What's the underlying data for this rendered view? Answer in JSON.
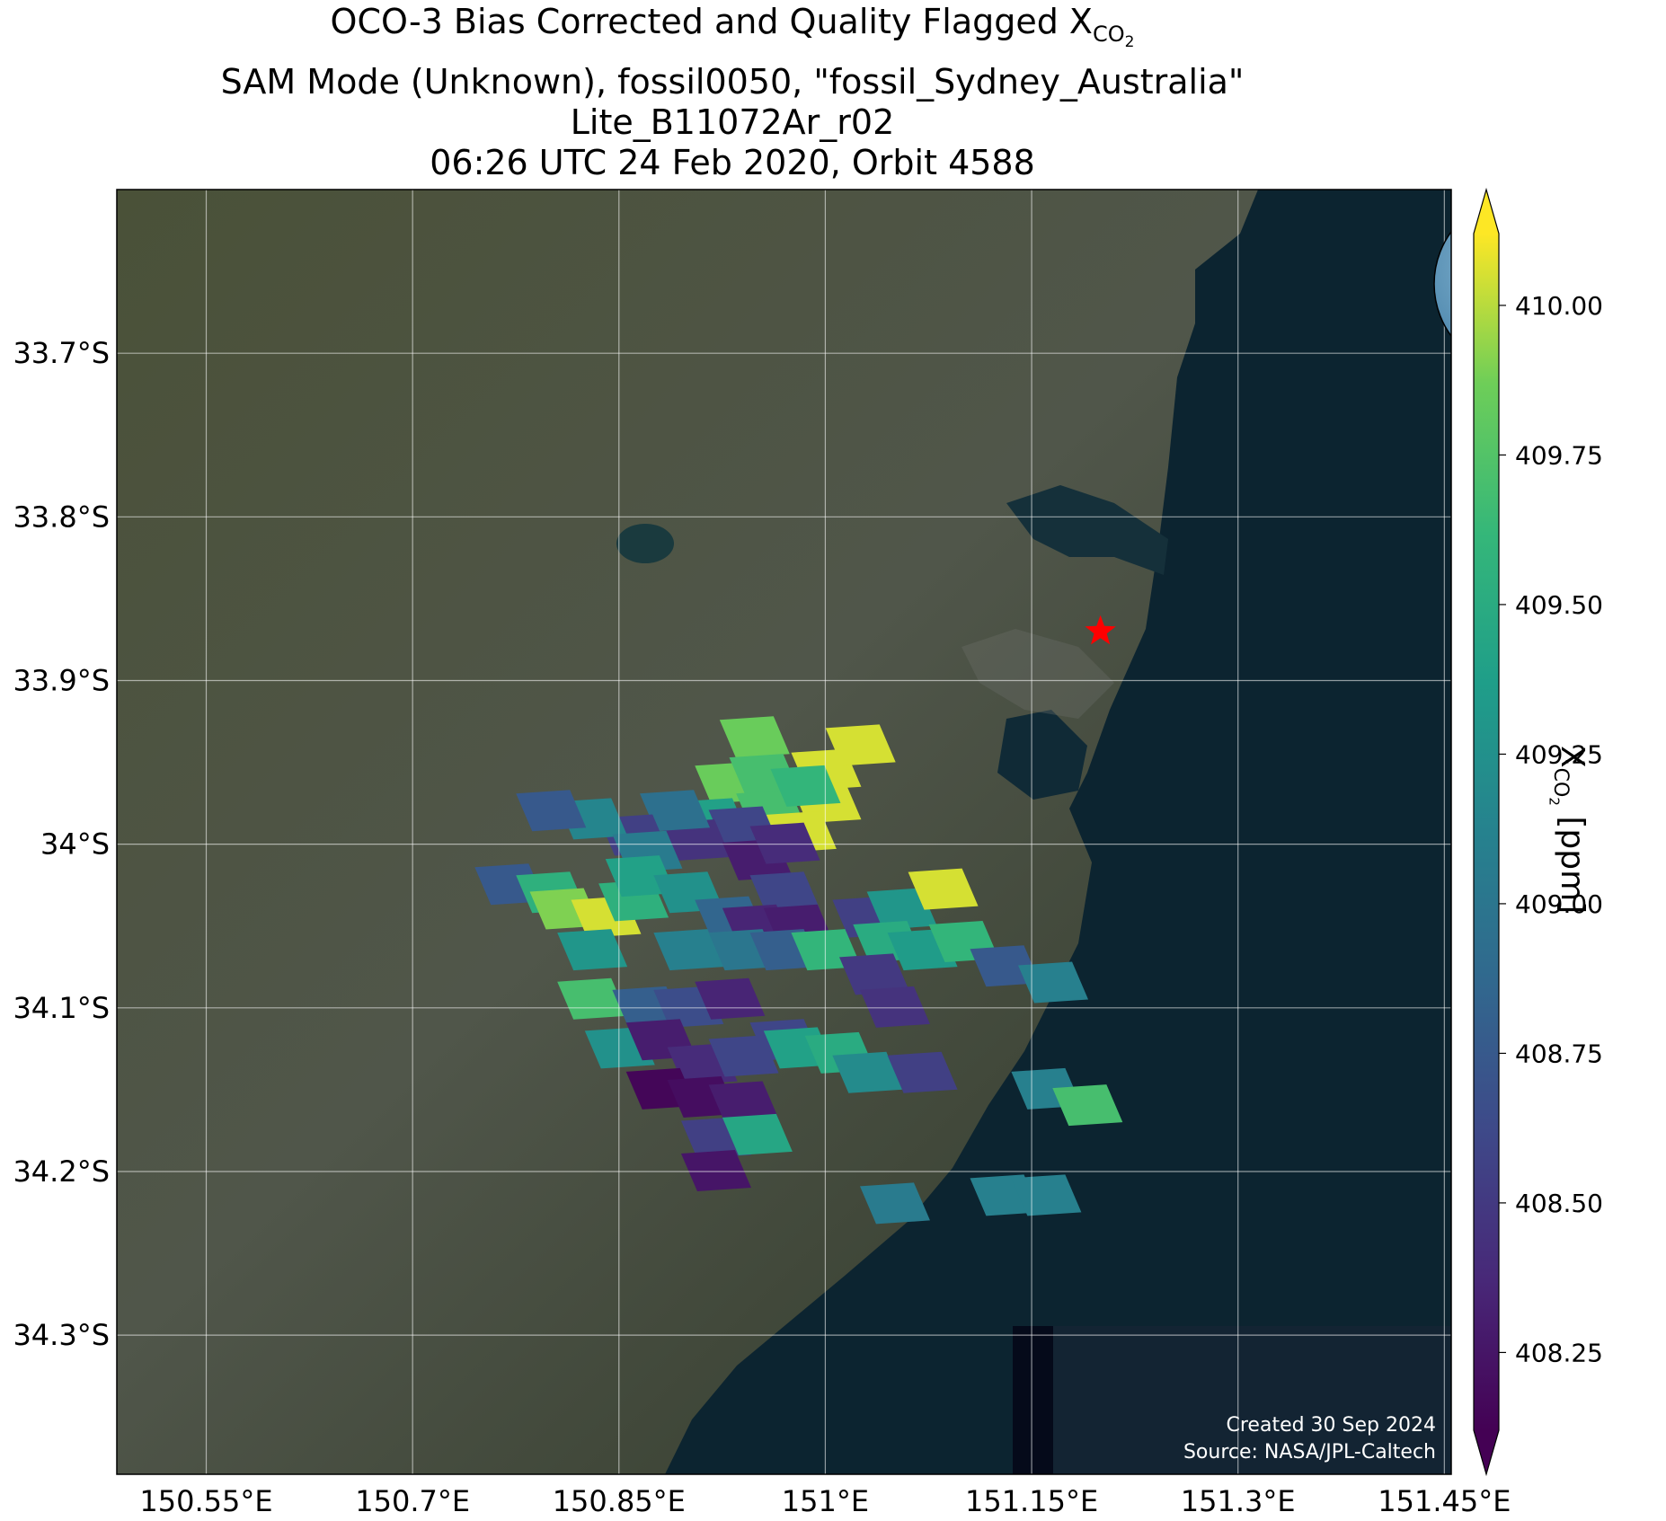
{
  "title": {
    "line1_prefix": "OCO-3 Bias Corrected and Quality Flagged X",
    "line1_sub": "CO",
    "line1_subsub": "2",
    "line2": "SAM Mode (Unknown), fossil0050, \"fossil_Sydney_Australia\"",
    "line3": "Lite_B11072Ar_r02",
    "line4": "06:26 UTC 24 Feb 2020, Orbit 4588"
  },
  "map": {
    "lon_range": [
      150.485,
      151.455
    ],
    "lat_range": [
      -34.385,
      -33.6
    ],
    "lat_ticks": [
      {
        "value": -33.7,
        "label": "33.7°S"
      },
      {
        "value": -33.8,
        "label": "33.8°S"
      },
      {
        "value": -33.9,
        "label": "33.9°S"
      },
      {
        "value": -34.0,
        "label": "34°S"
      },
      {
        "value": -34.1,
        "label": "34.1°S"
      },
      {
        "value": -34.2,
        "label": "34.2°S"
      },
      {
        "value": -34.3,
        "label": "34.3°S"
      }
    ],
    "lon_ticks": [
      {
        "value": 150.55,
        "label": "150.55°E"
      },
      {
        "value": 150.7,
        "label": "150.7°E"
      },
      {
        "value": 150.85,
        "label": "150.85°E"
      },
      {
        "value": 151.0,
        "label": "151°E"
      },
      {
        "value": 151.15,
        "label": "151.15°E"
      },
      {
        "value": 151.3,
        "label": "151.3°E"
      },
      {
        "value": 151.45,
        "label": "151.45°E"
      }
    ],
    "gridlines": true,
    "target_marker": {
      "name": "fossil_Sydney_Australia",
      "lon": 151.2,
      "lat": -33.87,
      "color": "#ff0000",
      "icon": "star-icon"
    },
    "inset_globe": {
      "icon": "globe-icon",
      "location": "top-right",
      "marker_color": "#ff0000"
    },
    "credits": {
      "line1": "Created 30 Sep 2024",
      "line2": "Source: NASA/JPL-Caltech"
    },
    "colors": {
      "land": "#3b4430",
      "ocean": "#0c2430",
      "grid": "#ffffff"
    }
  },
  "colorbar": {
    "label_prefix": "X",
    "label_sub": "CO",
    "label_subsub": "2",
    "label_suffix": " [ppm]",
    "min": 408.12,
    "max": 410.12,
    "extend": "both",
    "colormap": "viridis",
    "ticks": [
      "408.25",
      "408.50",
      "408.75",
      "409.00",
      "409.25",
      "409.50",
      "409.75",
      "410.00"
    ]
  },
  "chart_data": {
    "type": "heatmap",
    "description_units": "XCO2 ppm soundings at footprint centers (lon, lat)",
    "soundings": [
      {
        "lon": 150.948,
        "lat": -33.935,
        "xco2": 409.85
      },
      {
        "lon": 151.0,
        "lat": -33.955,
        "xco2": 410.05
      },
      {
        "lon": 151.025,
        "lat": -33.94,
        "xco2": 410.05
      },
      {
        "lon": 151.0,
        "lat": -33.975,
        "xco2": 410.05
      },
      {
        "lon": 150.93,
        "lat": -33.963,
        "xco2": 409.85
      },
      {
        "lon": 150.955,
        "lat": -33.958,
        "xco2": 409.7
      },
      {
        "lon": 150.96,
        "lat": -33.98,
        "xco2": 409.7
      },
      {
        "lon": 150.985,
        "lat": -33.965,
        "xco2": 409.6
      },
      {
        "lon": 150.918,
        "lat": -33.985,
        "xco2": 409.4
      },
      {
        "lon": 150.94,
        "lat": -33.99,
        "xco2": 408.6
      },
      {
        "lon": 150.905,
        "lat": -33.998,
        "xco2": 408.45
      },
      {
        "lon": 150.89,
        "lat": -33.98,
        "xco2": 408.95
      },
      {
        "lon": 150.86,
        "lat": -33.995,
        "xco2": 408.55
      },
      {
        "lon": 150.83,
        "lat": -33.985,
        "xco2": 409.15
      },
      {
        "lon": 150.8,
        "lat": -33.98,
        "xco2": 408.75
      },
      {
        "lon": 150.87,
        "lat": -34.005,
        "xco2": 409.05
      },
      {
        "lon": 150.982,
        "lat": -33.993,
        "xco2": 410.05
      },
      {
        "lon": 150.95,
        "lat": -34.01,
        "xco2": 408.3
      },
      {
        "lon": 150.97,
        "lat": -34.0,
        "xco2": 408.4
      },
      {
        "lon": 150.97,
        "lat": -34.03,
        "xco2": 408.6
      },
      {
        "lon": 150.77,
        "lat": -34.025,
        "xco2": 408.75
      },
      {
        "lon": 150.8,
        "lat": -34.03,
        "xco2": 409.55
      },
      {
        "lon": 150.81,
        "lat": -34.04,
        "xco2": 409.9
      },
      {
        "lon": 150.84,
        "lat": -34.045,
        "xco2": 410.05
      },
      {
        "lon": 150.86,
        "lat": -34.035,
        "xco2": 409.55
      },
      {
        "lon": 150.865,
        "lat": -34.02,
        "xco2": 409.4
      },
      {
        "lon": 150.9,
        "lat": -34.03,
        "xco2": 409.25
      },
      {
        "lon": 150.93,
        "lat": -34.045,
        "xco2": 408.85
      },
      {
        "lon": 150.95,
        "lat": -34.05,
        "xco2": 408.35
      },
      {
        "lon": 150.98,
        "lat": -34.05,
        "xco2": 408.3
      },
      {
        "lon": 151.03,
        "lat": -34.045,
        "xco2": 408.55
      },
      {
        "lon": 151.055,
        "lat": -34.04,
        "xco2": 409.3
      },
      {
        "lon": 151.085,
        "lat": -34.028,
        "xco2": 410.05
      },
      {
        "lon": 150.83,
        "lat": -34.065,
        "xco2": 409.3
      },
      {
        "lon": 150.9,
        "lat": -34.065,
        "xco2": 409.1
      },
      {
        "lon": 150.94,
        "lat": -34.065,
        "xco2": 409.0
      },
      {
        "lon": 150.97,
        "lat": -34.065,
        "xco2": 408.8
      },
      {
        "lon": 151.0,
        "lat": -34.065,
        "xco2": 409.6
      },
      {
        "lon": 151.045,
        "lat": -34.06,
        "xco2": 409.5
      },
      {
        "lon": 151.07,
        "lat": -34.065,
        "xco2": 409.35
      },
      {
        "lon": 151.1,
        "lat": -34.06,
        "xco2": 409.6
      },
      {
        "lon": 151.035,
        "lat": -34.08,
        "xco2": 408.5
      },
      {
        "lon": 151.13,
        "lat": -34.075,
        "xco2": 408.75
      },
      {
        "lon": 151.05,
        "lat": -34.1,
        "xco2": 408.45
      },
      {
        "lon": 151.165,
        "lat": -34.085,
        "xco2": 409.1
      },
      {
        "lon": 150.83,
        "lat": -34.095,
        "xco2": 409.7
      },
      {
        "lon": 150.87,
        "lat": -34.1,
        "xco2": 408.8
      },
      {
        "lon": 150.9,
        "lat": -34.1,
        "xco2": 408.65
      },
      {
        "lon": 150.93,
        "lat": -34.095,
        "xco2": 408.35
      },
      {
        "lon": 150.97,
        "lat": -34.12,
        "xco2": 408.6
      },
      {
        "lon": 150.85,
        "lat": -34.125,
        "xco2": 409.25
      },
      {
        "lon": 150.88,
        "lat": -34.12,
        "xco2": 408.3
      },
      {
        "lon": 150.91,
        "lat": -34.135,
        "xco2": 408.4
      },
      {
        "lon": 150.94,
        "lat": -34.13,
        "xco2": 408.6
      },
      {
        "lon": 150.98,
        "lat": -34.125,
        "xco2": 409.4
      },
      {
        "lon": 151.01,
        "lat": -34.128,
        "xco2": 409.5
      },
      {
        "lon": 151.03,
        "lat": -34.14,
        "xco2": 409.2
      },
      {
        "lon": 151.07,
        "lat": -34.14,
        "xco2": 408.55
      },
      {
        "lon": 150.88,
        "lat": -34.15,
        "xco2": 408.15
      },
      {
        "lon": 150.91,
        "lat": -34.155,
        "xco2": 408.2
      },
      {
        "lon": 150.94,
        "lat": -34.158,
        "xco2": 408.3
      },
      {
        "lon": 150.92,
        "lat": -34.18,
        "xco2": 408.55
      },
      {
        "lon": 150.95,
        "lat": -34.178,
        "xco2": 409.45
      },
      {
        "lon": 150.92,
        "lat": -34.2,
        "xco2": 408.25
      },
      {
        "lon": 151.16,
        "lat": -34.15,
        "xco2": 409.1
      },
      {
        "lon": 151.19,
        "lat": -34.16,
        "xco2": 409.7
      },
      {
        "lon": 151.05,
        "lat": -34.22,
        "xco2": 409.05
      },
      {
        "lon": 151.13,
        "lat": -34.215,
        "xco2": 409.1
      },
      {
        "lon": 151.16,
        "lat": -34.215,
        "xco2": 409.1
      }
    ]
  }
}
